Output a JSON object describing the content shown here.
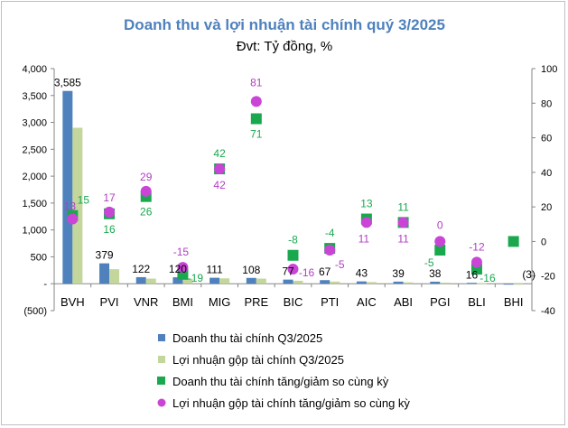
{
  "chart_data": {
    "type": "bar",
    "title": "Doanh thu và lợi nhuận tài chính quý 3/2025",
    "subtitle": "Đvt: Tỷ đồng, %",
    "categories": [
      "BVH",
      "PVI",
      "VNR",
      "BMI",
      "MIG",
      "PRE",
      "BIC",
      "PTI",
      "AIC",
      "ABI",
      "PGI",
      "BLI",
      "BHI"
    ],
    "ylim_left": [
      -500,
      4000
    ],
    "yticks_left": [
      -500,
      0,
      500,
      1000,
      1500,
      2000,
      2500,
      3000,
      3500,
      4000
    ],
    "ytick_labels_left": [
      "(500)",
      "-",
      "500",
      "1,000",
      "1,500",
      "2,000",
      "2,500",
      "3,000",
      "3,500",
      "4,000"
    ],
    "ylim_right": [
      -40,
      100
    ],
    "yticks_right": [
      -40,
      -20,
      0,
      20,
      40,
      60,
      80,
      100
    ],
    "ytick_labels_right": [
      "-40",
      "-20",
      "0",
      "20",
      "40",
      "60",
      "80",
      "100"
    ],
    "legend_position": "bottom",
    "series": [
      {
        "name": "Doanh thu tài chính Q3/2025",
        "type": "bar",
        "axis": "left",
        "color": "#4f81bd",
        "values": [
          3585,
          379,
          122,
          120,
          111,
          108,
          77,
          67,
          43,
          39,
          38,
          16,
          -3
        ],
        "labels": [
          "3,585",
          "379",
          "122",
          "120",
          "111",
          "108",
          "77",
          "67",
          "43",
          "39",
          "38",
          "16",
          "(3)"
        ]
      },
      {
        "name": "Lợi nhuận gộp tài chính Q3/2025",
        "type": "bar",
        "axis": "left",
        "color": "#c3d69b",
        "values": [
          2900,
          270,
          95,
          90,
          100,
          95,
          55,
          40,
          30,
          25,
          20,
          10,
          -2
        ],
        "labels": []
      },
      {
        "name": "Doanh thu tài chính tăng/giảm so cùng kỳ",
        "type": "scatter",
        "axis": "right",
        "marker": "square",
        "color": "#1aa84f",
        "label_color": "#1aa84f",
        "values": [
          15,
          16,
          26,
          -19,
          42,
          71,
          -8,
          -4,
          13,
          11,
          -5,
          -16,
          0
        ],
        "labels": [
          "15",
          "16",
          "26",
          "-19",
          "42",
          "71",
          "-8",
          "-4",
          "13",
          "11",
          "-5",
          "-16",
          ""
        ]
      },
      {
        "name": "Lợi nhuận gộp tài chính tăng/giảm so cùng kỳ",
        "type": "scatter",
        "axis": "right",
        "marker": "circle",
        "color": "#c945d6",
        "label_color": "#b03fc2",
        "values": [
          13,
          17,
          29,
          -15,
          42,
          81,
          -16,
          -5,
          11,
          11,
          0,
          -12,
          null
        ],
        "labels": [
          "13",
          "17",
          "29",
          "-15",
          "42",
          "81",
          "-16",
          "-5",
          "11",
          "11",
          "0",
          "-12",
          ""
        ]
      }
    ]
  }
}
